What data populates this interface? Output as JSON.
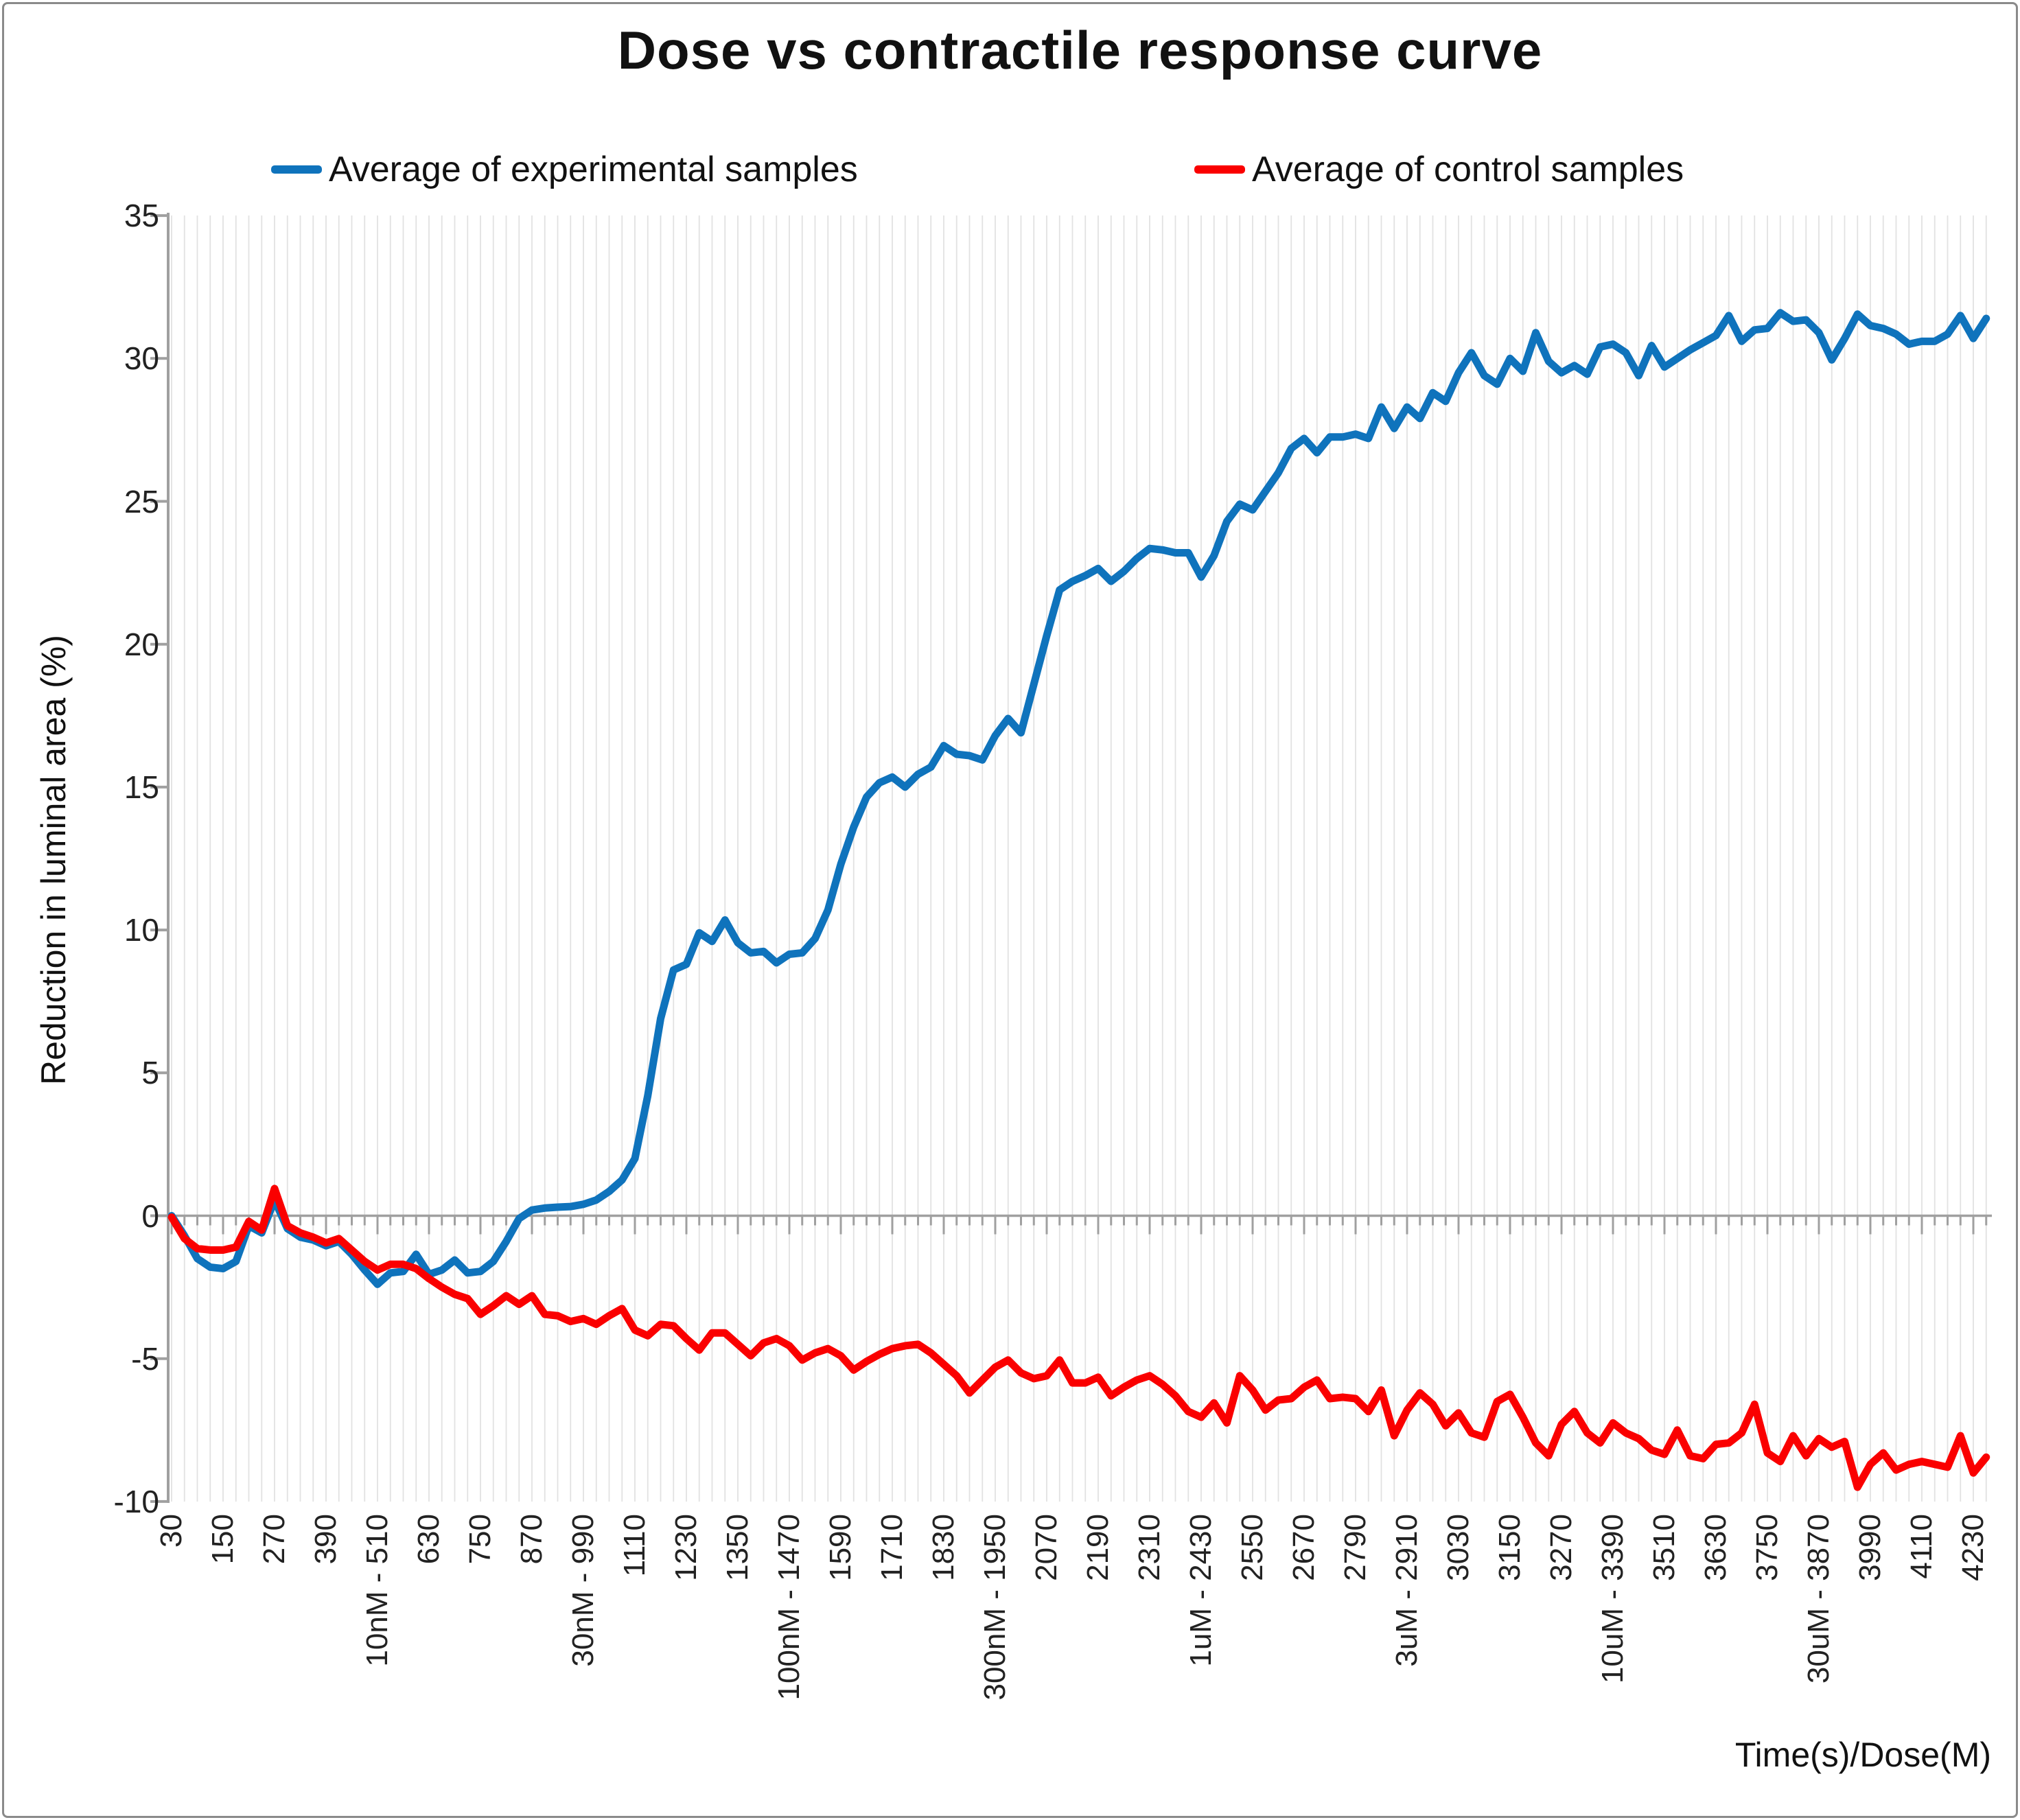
{
  "header": {
    "title": "Dose vs contractile response curve"
  },
  "axes": {
    "x_title": "Time(s)/Dose(M)",
    "y_title": "Reduction in luminal area (%)"
  },
  "legend": {
    "experimental_label": "Average of experimental samples",
    "control_label": "Average of control samples"
  },
  "colors": {
    "experimental": "#0f73bc",
    "control": "#fa0000",
    "axis": "#a0a0a0",
    "grid": "#e2e2e2",
    "text": "#222222"
  },
  "chart_data": {
    "type": "line",
    "title": "Dose vs contractile response curve",
    "xlabel": "Time(s)/Dose(M)",
    "ylabel": "Reduction in luminal area (%)",
    "ylim": [
      -10,
      35
    ],
    "yticks": [
      35,
      30,
      25,
      20,
      15,
      10,
      5,
      0,
      -5,
      -10
    ],
    "grid": "vertical-minor-every-30s",
    "legend_position": "top",
    "x_start": 30,
    "x_step": 30,
    "x_tick_interval": 120,
    "x_tick_labels": [
      "30",
      "150",
      "270",
      "390",
      "10nM - 510",
      "630",
      "750",
      "870",
      "30nM - 990",
      "1110",
      "1230",
      "1350",
      "100nM - 1470",
      "1590",
      "1710",
      "1830",
      "300nM - 1950",
      "2070",
      "2190",
      "2310",
      "1uM - 2430",
      "2550",
      "2670",
      "2790",
      "3uM - 2910",
      "3030",
      "3150",
      "3270",
      "10uM - 3390",
      "3510",
      "3630",
      "3750",
      "30uM - 3870",
      "3990",
      "4110",
      "4230"
    ],
    "series": [
      {
        "name": "Average of experimental samples",
        "color": "#0f73bc",
        "values": [
          0,
          -0.7,
          -1.5,
          -1.8,
          -1.85,
          -1.6,
          -0.35,
          -0.6,
          0.55,
          -0.45,
          -0.75,
          -0.85,
          -1.05,
          -0.9,
          -1.35,
          -1.9,
          -2.4,
          -2,
          -1.95,
          -1.35,
          -2.05,
          -1.9,
          -1.55,
          -2,
          -1.95,
          -1.6,
          -0.9,
          -0.1,
          0.2,
          0.27,
          0.3,
          0.32,
          0.4,
          0.55,
          0.85,
          1.25,
          2,
          4.2,
          6.9,
          8.6,
          8.8,
          9.9,
          9.6,
          10.35,
          9.55,
          9.2,
          9.25,
          8.85,
          9.15,
          9.2,
          9.7,
          10.7,
          12.3,
          13.6,
          14.65,
          15.15,
          15.35,
          15,
          15.45,
          15.7,
          16.45,
          16.15,
          16.1,
          15.95,
          16.8,
          17.4,
          16.9,
          18.6,
          20.3,
          21.9,
          22.2,
          22.4,
          22.65,
          22.2,
          22.55,
          23,
          23.35,
          23.3,
          23.2,
          23.2,
          22.35,
          23.1,
          24.3,
          24.9,
          24.7,
          25.35,
          26,
          26.85,
          27.2,
          26.7,
          27.25,
          27.25,
          27.35,
          27.2,
          28.3,
          27.55,
          28.3,
          27.9,
          28.8,
          28.5,
          29.5,
          30.2,
          29.4,
          29.1,
          30,
          29.55,
          30.9,
          29.9,
          29.5,
          29.75,
          29.45,
          30.4,
          30.5,
          30.2,
          29.4,
          30.45,
          29.7,
          30,
          30.3,
          30.55,
          30.8,
          31.5,
          30.6,
          31,
          31.05,
          31.6,
          31.3,
          31.35,
          30.9,
          29.95,
          30.7,
          31.55,
          31.15,
          31.05,
          30.85,
          30.5,
          30.6,
          30.6,
          30.85,
          31.5,
          30.7,
          31.4
        ]
      },
      {
        "name": "Average of control samples",
        "color": "#fa0000",
        "values": [
          -0.05,
          -0.8,
          -1.15,
          -1.2,
          -1.2,
          -1.1,
          -0.2,
          -0.5,
          0.95,
          -0.35,
          -0.6,
          -0.75,
          -0.95,
          -0.8,
          -1.2,
          -1.6,
          -1.9,
          -1.7,
          -1.7,
          -1.85,
          -2.2,
          -2.5,
          -2.75,
          -2.9,
          -3.45,
          -3.15,
          -2.8,
          -3.1,
          -2.8,
          -3.45,
          -3.5,
          -3.7,
          -3.6,
          -3.8,
          -3.5,
          -3.25,
          -4,
          -4.2,
          -3.8,
          -3.85,
          -4.3,
          -4.7,
          -4.1,
          -4.1,
          -4.5,
          -4.9,
          -4.45,
          -4.3,
          -4.55,
          -5.05,
          -4.8,
          -4.65,
          -4.9,
          -5.4,
          -5.1,
          -4.85,
          -4.65,
          -4.55,
          -4.5,
          -4.8,
          -5.2,
          -5.6,
          -6.2,
          -5.75,
          -5.3,
          -5.05,
          -5.5,
          -5.7,
          -5.6,
          -5.05,
          -5.85,
          -5.85,
          -5.65,
          -6.3,
          -6,
          -5.75,
          -5.6,
          -5.9,
          -6.3,
          -6.85,
          -7.05,
          -6.55,
          -7.25,
          -5.6,
          -6.1,
          -6.8,
          -6.45,
          -6.4,
          -6,
          -5.75,
          -6.4,
          -6.35,
          -6.4,
          -6.85,
          -6.1,
          -7.7,
          -6.8,
          -6.2,
          -6.6,
          -7.35,
          -6.9,
          -7.6,
          -7.75,
          -6.5,
          -6.25,
          -7.05,
          -7.95,
          -8.4,
          -7.3,
          -6.85,
          -7.6,
          -7.95,
          -7.25,
          -7.6,
          -7.8,
          -8.2,
          -8.35,
          -7.5,
          -8.4,
          -8.5,
          -8,
          -7.95,
          -7.6,
          -6.6,
          -8.3,
          -8.6,
          -7.7,
          -8.4,
          -7.8,
          -8.1,
          -7.9,
          -9.5,
          -8.7,
          -8.3,
          -8.9,
          -8.7,
          -8.6,
          -8.7,
          -8.8,
          -7.7,
          -9,
          -8.45
        ]
      }
    ]
  }
}
